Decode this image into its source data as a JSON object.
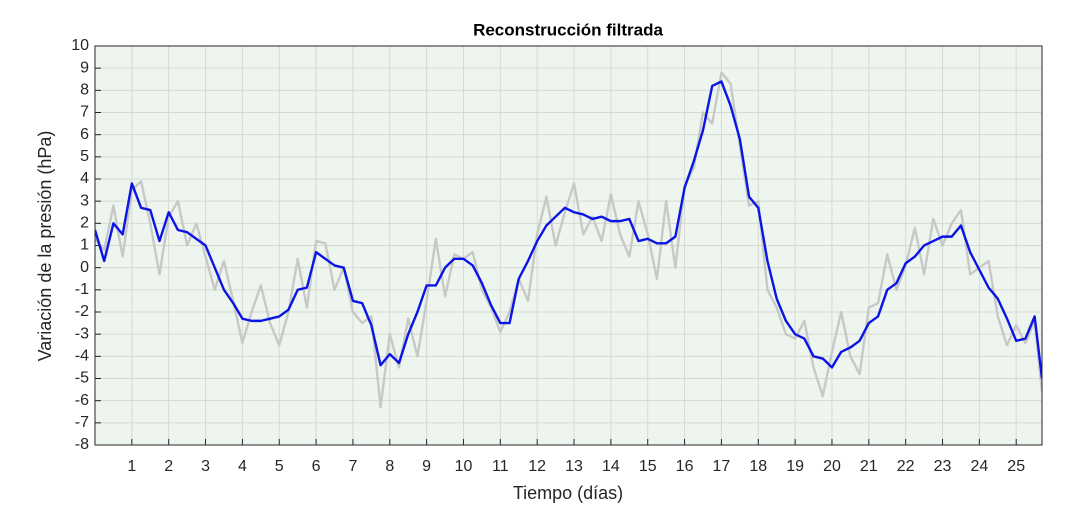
{
  "chart_data": {
    "type": "line",
    "title": "Reconstrucción filtrada",
    "xlabel": "Tiempo (días)",
    "ylabel": "Variación de la presión (hPa)",
    "x": [
      0,
      0.25,
      0.5,
      0.75,
      1,
      1.25,
      1.5,
      1.75,
      2,
      2.25,
      2.5,
      2.75,
      3,
      3.25,
      3.5,
      3.75,
      4,
      4.25,
      4.5,
      4.75,
      5,
      5.25,
      5.5,
      5.75,
      6,
      6.25,
      6.5,
      6.75,
      7,
      7.25,
      7.5,
      7.75,
      8,
      8.25,
      8.5,
      8.75,
      9,
      9.25,
      9.5,
      9.75,
      10,
      10.25,
      10.5,
      10.75,
      11,
      11.25,
      11.5,
      11.75,
      12,
      12.25,
      12.5,
      12.75,
      13,
      13.25,
      13.5,
      13.75,
      14,
      14.25,
      14.5,
      14.75,
      15,
      15.25,
      15.5,
      15.75,
      16,
      16.25,
      16.5,
      16.75,
      17,
      17.25,
      17.5,
      17.75,
      18,
      18.25,
      18.5,
      18.75,
      19,
      19.25,
      19.5,
      19.75,
      20,
      20.25,
      20.5,
      20.75,
      21,
      21.25,
      21.5,
      21.75,
      22,
      22.25,
      22.5,
      22.75,
      23,
      23.25,
      23.5,
      23.75,
      24,
      24.25,
      24.5,
      24.75,
      25,
      25.25,
      25.5,
      25.7
    ],
    "series": [
      {
        "color": "#c8c8c8",
        "values": [
          1.3,
          0.8,
          2.8,
          0.5,
          3.5,
          3.9,
          2.0,
          -0.3,
          2.3,
          3.0,
          1.0,
          2.0,
          0.5,
          -1.0,
          0.3,
          -1.5,
          -3.4,
          -2.0,
          -0.8,
          -2.5,
          -3.5,
          -2.0,
          0.4,
          -1.8,
          1.2,
          1.1,
          -1.0,
          0.0,
          -2.0,
          -2.5,
          -2.2,
          -6.3,
          -3.0,
          -4.5,
          -2.3,
          -4.0,
          -1.5,
          1.3,
          -1.3,
          0.6,
          0.4,
          0.7,
          -1.0,
          -1.8,
          -2.9,
          -2.0,
          -0.5,
          -1.5,
          1.5,
          3.2,
          1.0,
          2.5,
          3.8,
          1.5,
          2.3,
          1.2,
          3.3,
          1.5,
          0.5,
          3.0,
          1.5,
          -0.5,
          3.0,
          0.0,
          3.7,
          4.5,
          7.0,
          6.5,
          8.8,
          8.3,
          5.5,
          2.8,
          3.0,
          -1.0,
          -1.8,
          -3.0,
          -3.2,
          -2.4,
          -4.5,
          -5.8,
          -3.8,
          -2.0,
          -4.0,
          -4.8,
          -1.8,
          -1.6,
          0.6,
          -1.0,
          0.1,
          1.8,
          -0.3,
          2.2,
          1.0,
          2.0,
          2.6,
          -0.3,
          0.0,
          0.3,
          -2.2,
          -3.5,
          -2.6,
          -3.4,
          -2.4,
          -5.6
        ]
      },
      {
        "color": "#0a14e6",
        "values": [
          1.7,
          0.3,
          2.0,
          1.5,
          3.8,
          2.7,
          2.6,
          1.2,
          2.5,
          1.7,
          1.6,
          1.3,
          1.0,
          0.0,
          -1.0,
          -1.6,
          -2.3,
          -2.4,
          -2.4,
          -2.3,
          -2.2,
          -1.9,
          -1.0,
          -0.9,
          0.7,
          0.4,
          0.1,
          0.0,
          -1.5,
          -1.6,
          -2.6,
          -4.4,
          -3.9,
          -4.3,
          -3.0,
          -2.0,
          -0.8,
          -0.8,
          0.0,
          0.4,
          0.4,
          0.1,
          -0.7,
          -1.7,
          -2.5,
          -2.5,
          -0.5,
          0.3,
          1.2,
          1.9,
          2.3,
          2.7,
          2.5,
          2.4,
          2.2,
          2.3,
          2.1,
          2.1,
          2.2,
          1.2,
          1.3,
          1.1,
          1.1,
          1.4,
          3.6,
          4.8,
          6.2,
          8.2,
          8.4,
          7.3,
          5.8,
          3.2,
          2.7,
          0.3,
          -1.4,
          -2.4,
          -3.0,
          -3.2,
          -4.0,
          -4.1,
          -4.5,
          -3.8,
          -3.6,
          -3.3,
          -2.5,
          -2.2,
          -1.0,
          -0.7,
          0.2,
          0.5,
          1.0,
          1.2,
          1.4,
          1.4,
          1.9,
          0.7,
          -0.1,
          -0.9,
          -1.4,
          -2.3,
          -3.3,
          -3.2,
          -2.2,
          -5.0
        ]
      }
    ],
    "xlim": [
      0,
      25.7
    ],
    "ylim": [
      -8,
      10
    ],
    "xticks": [
      1,
      2,
      3,
      4,
      5,
      6,
      7,
      8,
      9,
      10,
      11,
      12,
      13,
      14,
      15,
      16,
      17,
      18,
      19,
      20,
      21,
      22,
      23,
      24,
      25
    ],
    "yticks": [
      -8,
      -7,
      -6,
      -5,
      -4,
      -3,
      -2,
      -1,
      0,
      1,
      2,
      3,
      4,
      5,
      6,
      7,
      8,
      9,
      10
    ],
    "grid": true,
    "background": "#eef5ee"
  }
}
